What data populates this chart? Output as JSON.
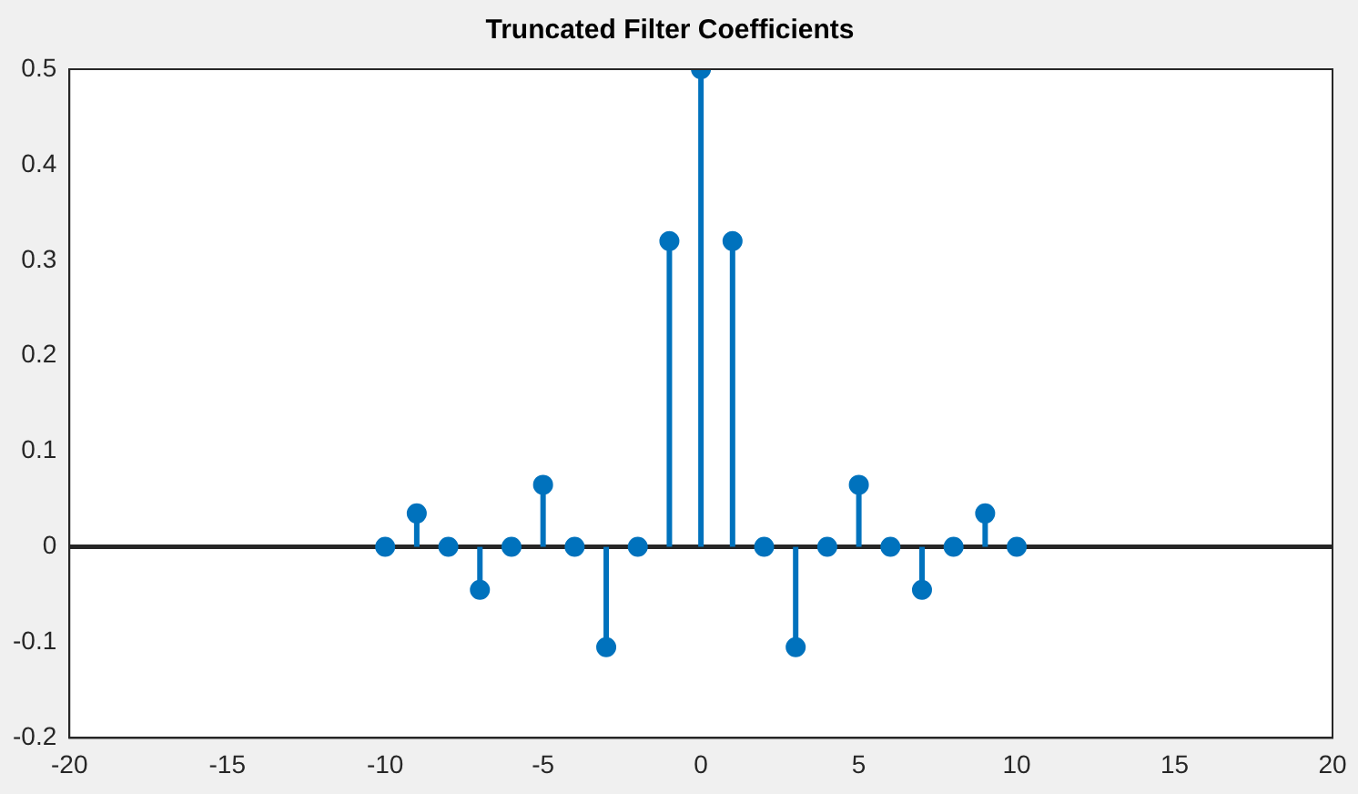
{
  "chart_data": {
    "type": "lollipop",
    "title": "Truncated Filter Coefficients",
    "x": [
      -10,
      -9,
      -8,
      -7,
      -6,
      -5,
      -4,
      -3,
      -2,
      -1,
      0,
      1,
      2,
      3,
      4,
      5,
      6,
      7,
      8,
      9,
      10
    ],
    "values": [
      0,
      0.035,
      0,
      -0.045,
      0,
      0.065,
      0,
      -0.105,
      0,
      0.32,
      0.5,
      0.32,
      0,
      -0.105,
      0,
      0.065,
      0,
      -0.045,
      0,
      0.035,
      0
    ],
    "color": "#0072bd",
    "marker": "circle",
    "grid": false,
    "legend": false,
    "xlim": [
      -20,
      20
    ],
    "xticks": [
      -20,
      -15,
      -10,
      -5,
      0,
      5,
      10,
      15,
      20
    ],
    "ylim": [
      -0.2,
      0.5
    ],
    "yticks": [
      -0.2,
      -0.1,
      0,
      0.1,
      0.2,
      0.3,
      0.4,
      0.5
    ],
    "ref_lines": [
      {
        "axis": "y",
        "value": 0,
        "color": "#262626"
      }
    ]
  }
}
